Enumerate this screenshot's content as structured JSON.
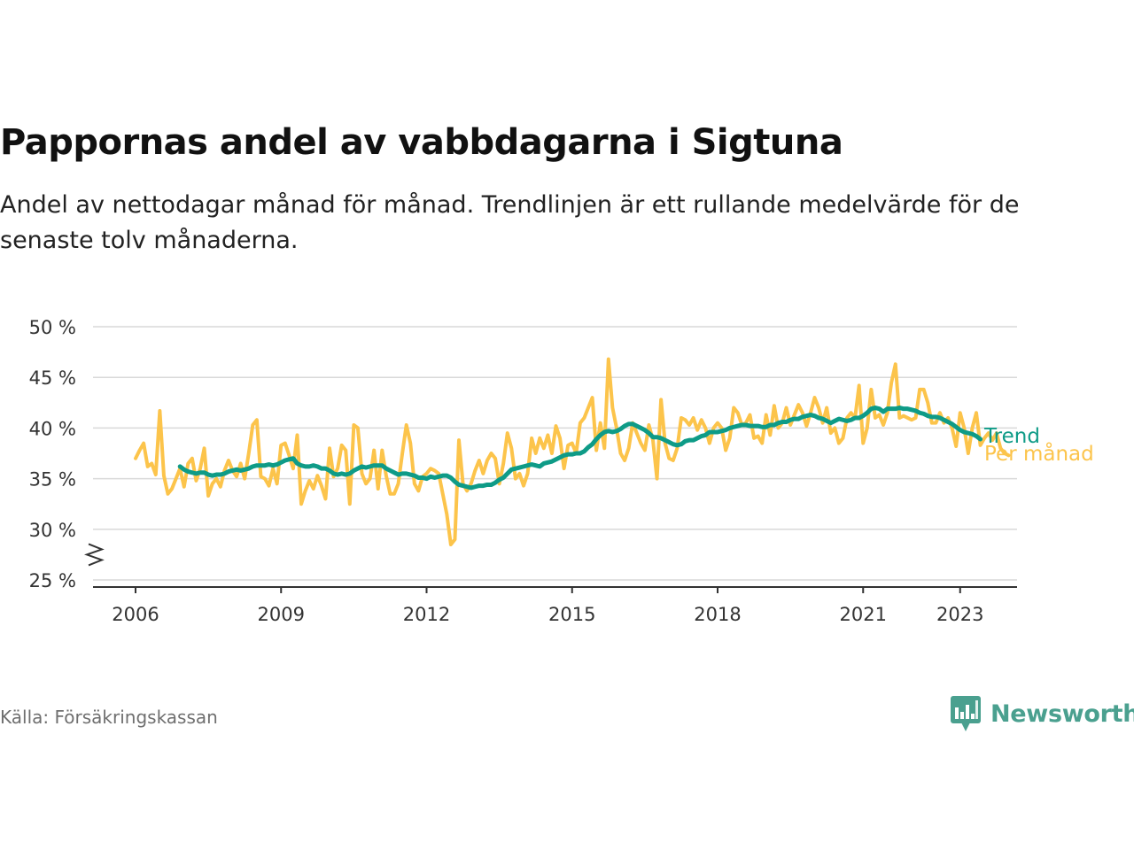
{
  "header": {
    "title": "Pappornas andel av vabbdagarna i Sigtuna",
    "subtitle": "Andel av nettodagar månad för månad. Trendlinjen är ett rullande medelvärde för de senaste tolv månaderna."
  },
  "footer": {
    "source": "Källa: Försäkringskassan",
    "brand": "Newsworthy",
    "brand_icon": "newsworthy-logo-icon"
  },
  "colors": {
    "monthly": "#fcc44b",
    "trend": "#0e9b87",
    "grid": "#d9d9d9",
    "axis": "#333333",
    "brand": "#4aa08f"
  },
  "chart_data": {
    "type": "line",
    "ylim": [
      25,
      50
    ],
    "y_ticks": [
      25,
      30,
      35,
      40,
      45,
      50
    ],
    "y_tick_labels": [
      "25 %",
      "30 %",
      "35 %",
      "40 %",
      "45 %",
      "50 %"
    ],
    "y_axis_break": true,
    "x_ticks": [
      2006,
      2009,
      2012,
      2015,
      2018,
      2021,
      2023
    ],
    "x_tick_labels": [
      "2006",
      "2009",
      "2012",
      "2015",
      "2018",
      "2021",
      "2023"
    ],
    "x_start": "2006-01",
    "grid": true,
    "legend": "end-of-line labels",
    "series": [
      {
        "name": "Per månad",
        "color": "#fcc44b",
        "values": [
          37.0,
          37.8,
          38.5,
          36.2,
          36.5,
          35.4,
          41.7,
          35.3,
          33.5,
          34.0,
          35.0,
          36.0,
          34.2,
          36.5,
          37.0,
          34.8,
          36.0,
          38.0,
          33.3,
          34.5,
          35.0,
          34.2,
          35.8,
          36.8,
          35.8,
          35.2,
          36.5,
          35.0,
          37.5,
          40.3,
          40.8,
          35.2,
          35.0,
          34.3,
          36.0,
          34.5,
          38.3,
          38.5,
          37.3,
          36.0,
          39.3,
          32.5,
          33.8,
          34.8,
          34.0,
          35.3,
          34.3,
          33.0,
          38.0,
          35.2,
          36.0,
          38.3,
          37.8,
          32.5,
          40.3,
          40.0,
          35.5,
          34.5,
          35.0,
          37.8,
          34.0,
          37.8,
          35.3,
          33.5,
          33.5,
          34.5,
          37.5,
          40.3,
          38.5,
          34.5,
          33.8,
          35.2,
          35.5,
          36.0,
          35.8,
          35.5,
          33.5,
          31.5,
          28.5,
          29.0,
          38.8,
          34.5,
          33.8,
          34.5,
          35.8,
          36.8,
          35.5,
          36.8,
          37.5,
          37.0,
          34.5,
          36.5,
          39.5,
          38.0,
          35.0,
          35.5,
          34.3,
          35.5,
          39.0,
          37.5,
          39.0,
          38.0,
          39.3,
          37.5,
          40.2,
          39.0,
          36.0,
          38.3,
          38.5,
          37.5,
          40.5,
          41.0,
          42.0,
          43.0,
          37.8,
          40.5,
          38.0,
          46.8,
          42.0,
          40.0,
          37.5,
          36.8,
          38.0,
          40.5,
          39.5,
          38.5,
          37.8,
          40.3,
          38.8,
          35.0,
          42.8,
          38.5,
          37.0,
          36.8,
          38.0,
          41.0,
          40.8,
          40.3,
          41.0,
          39.8,
          40.8,
          40.0,
          38.5,
          40.0,
          40.5,
          40.0,
          37.8,
          39.0,
          42.0,
          41.5,
          40.3,
          40.5,
          41.3,
          39.0,
          39.2,
          38.5,
          41.3,
          39.3,
          42.2,
          40.0,
          40.5,
          42.0,
          40.3,
          41.3,
          42.3,
          41.5,
          40.2,
          41.5,
          43.0,
          42.0,
          40.5,
          42.0,
          39.5,
          40.0,
          38.5,
          39.0,
          41.0,
          41.5,
          41.0,
          44.2,
          38.5,
          40.0,
          43.8,
          41.0,
          41.3,
          40.3,
          41.5,
          44.5,
          46.3,
          41.0,
          41.2,
          41.0,
          40.8,
          41.0,
          43.8,
          43.8,
          42.5,
          40.5,
          40.5,
          41.5,
          40.5,
          41.0,
          40.0,
          38.2,
          41.5,
          40.0,
          37.5,
          40.0,
          41.5,
          38.3,
          39.0,
          39.5,
          38.8,
          39.5,
          38.0,
          37.5,
          37.3
        ]
      },
      {
        "name": "Trend",
        "color": "#0e9b87",
        "start": "2006-12",
        "values": [
          36.2,
          35.9,
          35.7,
          35.6,
          35.5,
          35.6,
          35.6,
          35.4,
          35.3,
          35.4,
          35.4,
          35.5,
          35.7,
          35.8,
          35.9,
          35.8,
          35.9,
          36.0,
          36.2,
          36.3,
          36.3,
          36.3,
          36.4,
          36.3,
          36.4,
          36.6,
          36.8,
          36.9,
          37.0,
          36.5,
          36.3,
          36.2,
          36.2,
          36.3,
          36.2,
          36.0,
          36.0,
          35.8,
          35.5,
          35.4,
          35.5,
          35.4,
          35.5,
          35.8,
          36.0,
          36.2,
          36.1,
          36.2,
          36.3,
          36.3,
          36.3,
          36.0,
          35.8,
          35.6,
          35.4,
          35.5,
          35.5,
          35.4,
          35.3,
          35.1,
          35.1,
          35.0,
          35.2,
          35.1,
          35.2,
          35.3,
          35.3,
          35.1,
          34.7,
          34.4,
          34.3,
          34.2,
          34.1,
          34.2,
          34.3,
          34.3,
          34.4,
          34.4,
          34.6,
          34.9,
          35.1,
          35.5,
          35.9,
          36.0,
          36.1,
          36.2,
          36.3,
          36.4,
          36.3,
          36.2,
          36.5,
          36.6,
          36.7,
          36.9,
          37.1,
          37.3,
          37.4,
          37.4,
          37.5,
          37.5,
          37.7,
          38.1,
          38.4,
          38.9,
          39.3,
          39.6,
          39.7,
          39.6,
          39.7,
          39.9,
          40.2,
          40.4,
          40.4,
          40.2,
          40.0,
          39.8,
          39.5,
          39.1,
          39.1,
          39.0,
          38.8,
          38.6,
          38.4,
          38.3,
          38.4,
          38.7,
          38.8,
          38.8,
          39.0,
          39.2,
          39.3,
          39.6,
          39.6,
          39.6,
          39.7,
          39.8,
          40.0,
          40.1,
          40.2,
          40.3,
          40.3,
          40.2,
          40.2,
          40.2,
          40.1,
          40.1,
          40.3,
          40.3,
          40.5,
          40.6,
          40.6,
          40.8,
          40.9,
          40.9,
          41.1,
          41.2,
          41.3,
          41.2,
          41.0,
          40.9,
          40.7,
          40.5,
          40.7,
          40.9,
          40.8,
          40.7,
          40.8,
          41.0,
          41.0,
          41.2,
          41.5,
          41.9,
          42.0,
          41.9,
          41.6,
          41.9,
          41.9,
          41.9,
          42.0,
          41.9,
          41.9,
          41.8,
          41.7,
          41.5,
          41.4,
          41.2,
          41.1,
          41.1,
          41.0,
          40.8,
          40.6,
          40.4,
          40.1,
          39.8,
          39.6,
          39.5,
          39.4,
          39.2,
          38.9
        ]
      }
    ]
  }
}
